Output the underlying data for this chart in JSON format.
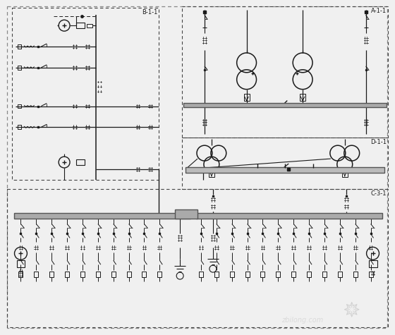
{
  "bg": "#f0f0f0",
  "white": "#ffffff",
  "lc": "#1a1a1a",
  "dc": "#555555",
  "gray": "#aaaaaa",
  "label_B": "B-1-1",
  "label_A": "A-1-1",
  "label_D": "D-1-1",
  "label_C": "C-3-1",
  "watermark": "zbilong.com",
  "wm_color": "#cccccc",
  "figsize": [
    5.6,
    4.75
  ],
  "dpi": 100
}
